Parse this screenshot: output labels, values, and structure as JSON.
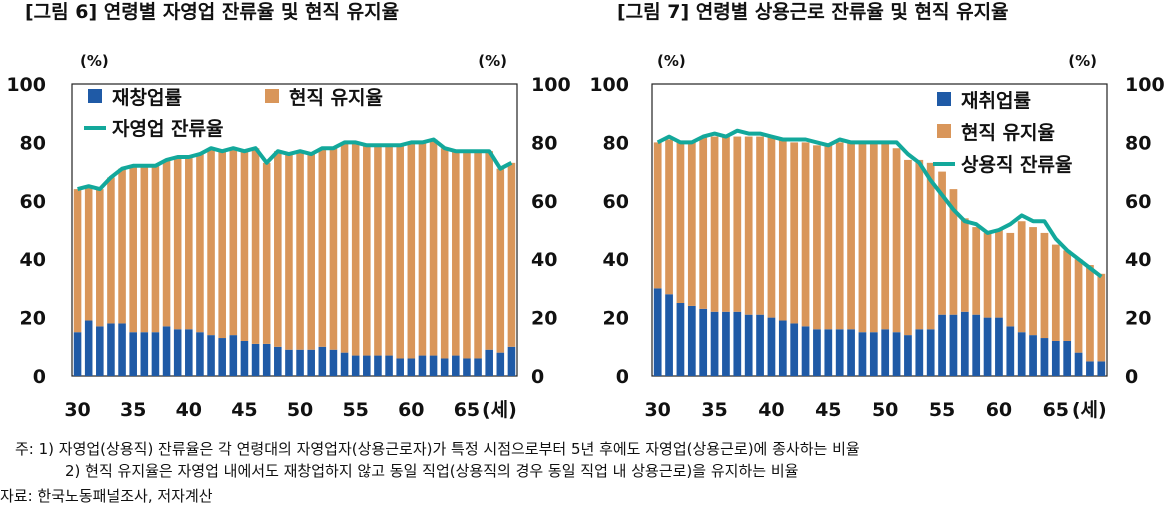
{
  "figures": [
    {
      "title": "[그림 6] 연령별 자영업 잔류율 및 현직 유지율",
      "chart_data": {
        "type": "bar",
        "unit_left": "(%)",
        "unit_right": "(%)",
        "ylim": [
          0,
          100
        ],
        "yticks": [
          0,
          20,
          40,
          60,
          80,
          100
        ],
        "x": [
          30,
          31,
          32,
          33,
          34,
          35,
          36,
          37,
          38,
          39,
          40,
          41,
          42,
          43,
          44,
          45,
          46,
          47,
          48,
          49,
          50,
          51,
          52,
          53,
          54,
          55,
          56,
          57,
          58,
          59,
          60,
          61,
          62,
          63,
          64,
          65,
          66,
          67,
          68,
          69
        ],
        "xticks": [
          "30",
          "35",
          "40",
          "45",
          "50",
          "55",
          "60",
          "65"
        ],
        "xunit": "(세)",
        "stacked": true,
        "legend_position": "top-left",
        "series": [
          {
            "name": "재창업률",
            "kind": "bar",
            "color": "#1f5aa6",
            "values": [
              15,
              19,
              17,
              18,
              18,
              15,
              15,
              15,
              17,
              16,
              16,
              15,
              14,
              13,
              14,
              12,
              11,
              11,
              10,
              9,
              9,
              9,
              10,
              9,
              8,
              7,
              7,
              7,
              7,
              6,
              6,
              7,
              7,
              6,
              7,
              6,
              6,
              9,
              8,
              10
            ]
          },
          {
            "name": "현직 유지율",
            "kind": "bar",
            "color": "#d9965a",
            "values": [
              49,
              46,
              47,
              50,
              53,
              57,
              57,
              57,
              57,
              59,
              59,
              61,
              64,
              64,
              64,
              65,
              67,
              62,
              67,
              67,
              68,
              67,
              68,
              69,
              72,
              73,
              72,
              72,
              72,
              73,
              74,
              73,
              74,
              72,
              70,
              71,
              71,
              68,
              63,
              63
            ]
          },
          {
            "name": "자영업 잔류율",
            "kind": "line",
            "color": "#13a89b",
            "values": [
              64,
              65,
              64,
              68,
              71,
              72,
              72,
              72,
              74,
              75,
              75,
              76,
              78,
              77,
              78,
              77,
              78,
              73,
              77,
              76,
              77,
              76,
              78,
              78,
              80,
              80,
              79,
              79,
              79,
              79,
              80,
              80,
              81,
              78,
              77,
              77,
              77,
              77,
              71,
              73
            ]
          }
        ]
      }
    },
    {
      "title": "[그림 7] 연령별 상용근로 잔류율 및 현직 유지율",
      "chart_data": {
        "type": "bar",
        "unit_left": "(%)",
        "unit_right": "(%)",
        "ylim": [
          0,
          100
        ],
        "yticks": [
          0,
          20,
          40,
          60,
          80,
          100
        ],
        "x": [
          30,
          31,
          32,
          33,
          34,
          35,
          36,
          37,
          38,
          39,
          40,
          41,
          42,
          43,
          44,
          45,
          46,
          47,
          48,
          49,
          50,
          51,
          52,
          53,
          54,
          55,
          56,
          57,
          58,
          59,
          60,
          61,
          62,
          63,
          64,
          65,
          66,
          67,
          68,
          69
        ],
        "xticks": [
          "30",
          "35",
          "40",
          "45",
          "50",
          "55",
          "60",
          "65"
        ],
        "xunit": "(세)",
        "stacked": true,
        "legend_position": "top-right",
        "series": [
          {
            "name": "재취업률",
            "kind": "bar",
            "color": "#1f5aa6",
            "values": [
              30,
              28,
              25,
              24,
              23,
              22,
              22,
              22,
              21,
              21,
              20,
              19,
              18,
              17,
              16,
              16,
              16,
              16,
              15,
              15,
              16,
              15,
              14,
              16,
              16,
              21,
              21,
              22,
              21,
              20,
              20,
              17,
              15,
              14,
              13,
              12,
              12,
              8,
              5,
              5
            ]
          },
          {
            "name": "현직 유지율",
            "kind": "bar",
            "color": "#d9965a",
            "values": [
              50,
              53,
              55,
              56,
              59,
              60,
              60,
              60,
              61,
              61,
              62,
              62,
              62,
              63,
              63,
              63,
              64,
              64,
              65,
              65,
              64,
              63,
              60,
              58,
              57,
              49,
              43,
              32,
              30,
              29,
              30,
              32,
              38,
              37,
              36,
              33,
              31,
              32,
              33,
              30
            ]
          },
          {
            "name": "상용직 잔류율",
            "kind": "line",
            "color": "#13a89b",
            "values": [
              80,
              82,
              80,
              80,
              82,
              83,
              82,
              84,
              83,
              83,
              82,
              81,
              81,
              81,
              80,
              79,
              81,
              80,
              80,
              80,
              80,
              80,
              76,
              73,
              67,
              62,
              57,
              53,
              52,
              49,
              50,
              52,
              55,
              53,
              53,
              47,
              43,
              40,
              37,
              34
            ]
          }
        ]
      }
    }
  ],
  "notes": [
    "주:  1) 자영업(상용직) 잔류율은 각 연령대의 자영업자(상용근로자)가 특정 시점으로부터 5년 후에도 자영업(상용근로)에 종사하는 비율",
    "2) 현직 유지율은 자영업 내에서도 재창업하지 않고 동일 직업(상용직의 경우 동일 직업 내 상용근로)을 유지하는 비율"
  ],
  "source": "자료: 한국노동패널조사, 저자계산"
}
